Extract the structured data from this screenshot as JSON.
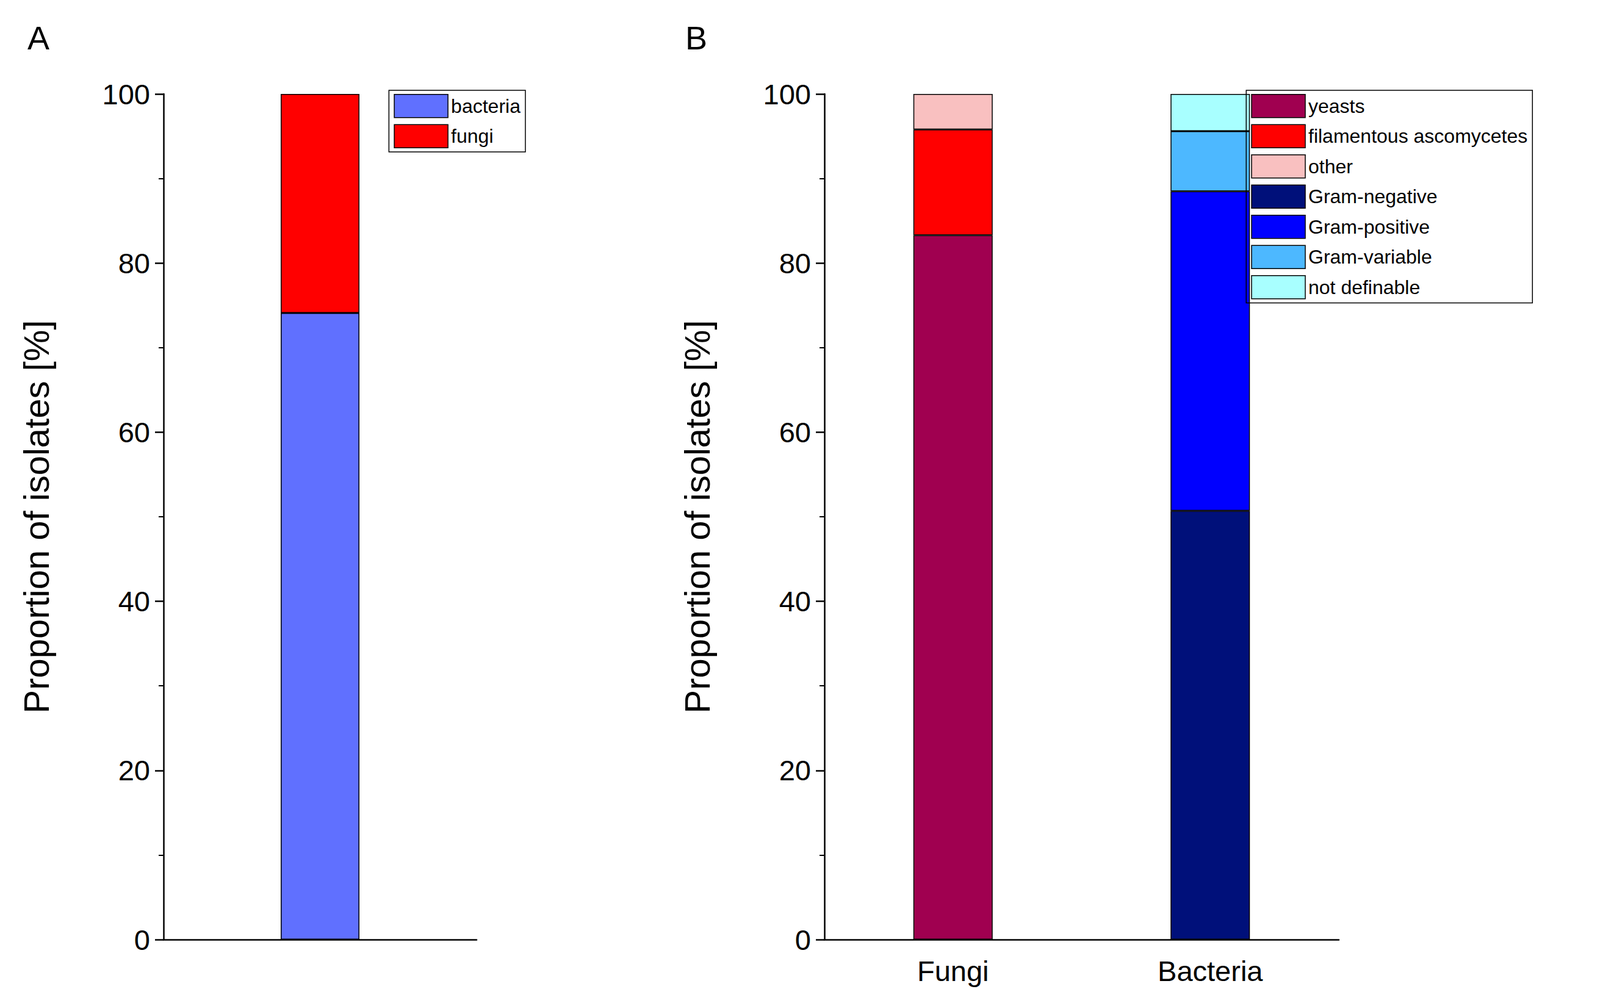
{
  "chart_data": [
    {
      "title": "A",
      "type": "bar",
      "stacked": true,
      "categories": [
        null
      ],
      "y_label": "Proportion of isolates [%]",
      "ylim": [
        0,
        100
      ],
      "yticks": [
        0,
        20,
        40,
        60,
        80,
        100
      ],
      "legend": "top-right",
      "series": [
        {
          "name": "bacteria",
          "color": "#6070ff",
          "values": [
            74.1
          ]
        },
        {
          "name": "fungi",
          "color": "#ff0000",
          "values": [
            25.9
          ]
        }
      ]
    },
    {
      "title": "B",
      "type": "bar",
      "stacked": true,
      "categories": [
        "Fungi",
        "Bacteria"
      ],
      "y_label": "Proportion of isolates [%]",
      "ylim": [
        0,
        100
      ],
      "yticks": [
        0,
        20,
        40,
        60,
        80,
        100
      ],
      "legend": "top-right",
      "series": [
        {
          "name": "yeasts",
          "color": "#a00050",
          "values": [
            83.3,
            null
          ]
        },
        {
          "name": "filamentous ascomycetes",
          "color": "#ff0000",
          "values": [
            12.5,
            null
          ]
        },
        {
          "name": "other",
          "color": "#f9c0c0",
          "values": [
            4.2,
            null
          ]
        },
        {
          "name": "Gram-negative",
          "color": "#00107a",
          "values": [
            null,
            50.7
          ]
        },
        {
          "name": "Gram-positive",
          "color": "#0000ff",
          "values": [
            null,
            37.8
          ]
        },
        {
          "name": "Gram-variable",
          "color": "#4db8ff",
          "values": [
            null,
            7.1
          ]
        },
        {
          "name": "not definable",
          "color": "#a8ffff",
          "values": [
            null,
            4.4
          ]
        }
      ]
    }
  ]
}
